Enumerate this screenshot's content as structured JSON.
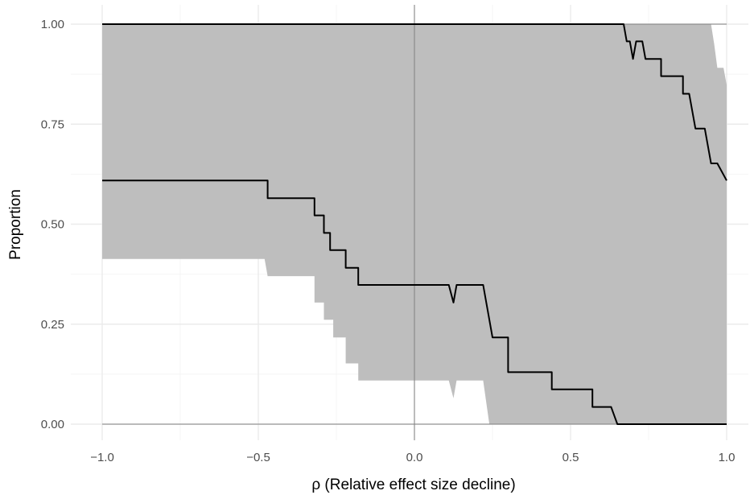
{
  "chart_data": {
    "type": "line",
    "title": "",
    "xlabel": "ρ (Relative effect size decline)",
    "ylabel": "Proportion",
    "xlim": [
      -1.0,
      1.0
    ],
    "ylim": [
      0.0,
      1.0
    ],
    "x_ticks": [
      -1.0,
      -0.5,
      0.0,
      0.5,
      1.0
    ],
    "x_tick_labels": [
      "−1.0",
      "−0.5",
      "0.0",
      "0.5",
      "1.0"
    ],
    "y_ticks": [
      0.0,
      0.25,
      0.5,
      0.75,
      1.0
    ],
    "y_tick_labels": [
      "0.00",
      "0.25",
      "0.50",
      "0.75",
      "1.00"
    ],
    "grid": true,
    "reference_lines": {
      "x": [
        0.0
      ],
      "y": [
        0.0,
        1.0
      ]
    },
    "colors": {
      "band": "#bebebe",
      "line": "#000000",
      "grid_major": "#ebebeb",
      "grid_minor": "#f4f4f4",
      "ref": "#808080"
    },
    "series": [
      {
        "values": [
          [
            -1.0,
            0.609
          ],
          [
            -0.47,
            0.609
          ],
          [
            -0.47,
            0.565
          ],
          [
            -0.32,
            0.565
          ],
          [
            -0.32,
            0.522
          ],
          [
            -0.29,
            0.522
          ],
          [
            -0.29,
            0.478
          ],
          [
            -0.27,
            0.478
          ],
          [
            -0.27,
            0.435
          ],
          [
            -0.22,
            0.435
          ],
          [
            -0.22,
            0.391
          ],
          [
            -0.18,
            0.391
          ],
          [
            -0.18,
            0.348
          ],
          [
            0.11,
            0.348
          ],
          [
            0.125,
            0.304
          ],
          [
            0.135,
            0.348
          ],
          [
            0.22,
            0.348
          ],
          [
            0.25,
            0.217
          ],
          [
            0.3,
            0.217
          ],
          [
            0.3,
            0.13
          ],
          [
            0.44,
            0.13
          ],
          [
            0.44,
            0.087
          ],
          [
            0.57,
            0.087
          ],
          [
            0.57,
            0.043
          ],
          [
            0.63,
            0.043
          ],
          [
            0.65,
            0.0
          ],
          [
            1.0,
            0.0
          ]
        ],
        "band_lower": [
          [
            -1.0,
            0.413
          ],
          [
            -0.48,
            0.413
          ],
          [
            -0.47,
            0.37
          ],
          [
            -0.32,
            0.37
          ],
          [
            -0.32,
            0.304
          ],
          [
            -0.29,
            0.304
          ],
          [
            -0.29,
            0.261
          ],
          [
            -0.26,
            0.261
          ],
          [
            -0.26,
            0.217
          ],
          [
            -0.22,
            0.217
          ],
          [
            -0.22,
            0.152
          ],
          [
            -0.18,
            0.152
          ],
          [
            -0.18,
            0.109
          ],
          [
            0.11,
            0.109
          ],
          [
            0.125,
            0.065
          ],
          [
            0.135,
            0.109
          ],
          [
            0.22,
            0.109
          ],
          [
            0.24,
            0.0
          ],
          [
            1.0,
            0.0
          ]
        ],
        "band_upper": [
          [
            -1.0,
            1.0
          ],
          [
            0.95,
            1.0
          ],
          [
            0.96,
            0.95
          ],
          [
            0.97,
            0.891
          ],
          [
            0.99,
            0.891
          ],
          [
            1.0,
            0.848
          ]
        ]
      },
      {
        "values": [
          [
            -1.0,
            1.0
          ],
          [
            0.67,
            1.0
          ],
          [
            0.68,
            0.957
          ],
          [
            0.69,
            0.957
          ],
          [
            0.7,
            0.913
          ],
          [
            0.71,
            0.957
          ],
          [
            0.73,
            0.957
          ],
          [
            0.74,
            0.913
          ],
          [
            0.79,
            0.913
          ],
          [
            0.79,
            0.87
          ],
          [
            0.86,
            0.87
          ],
          [
            0.86,
            0.826
          ],
          [
            0.88,
            0.826
          ],
          [
            0.9,
            0.739
          ],
          [
            0.93,
            0.739
          ],
          [
            0.95,
            0.652
          ],
          [
            0.97,
            0.652
          ],
          [
            1.0,
            0.609
          ]
        ]
      }
    ]
  }
}
